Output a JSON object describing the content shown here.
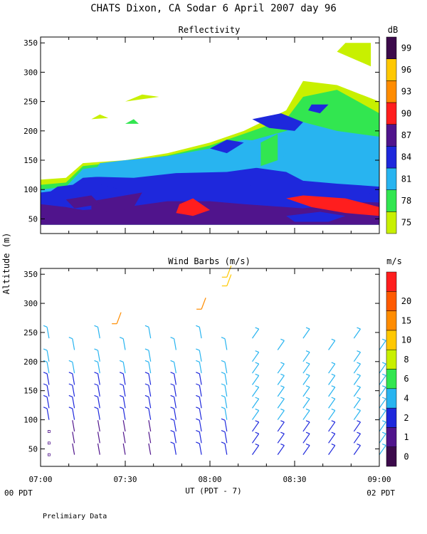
{
  "figure": {
    "title": "CHATS Dixon, CA  Sodar   6 April 2007  day  96",
    "shared_ylabel": "Altitude (m)",
    "xlabel": "UT  (PDT - 7)",
    "x_start_label": "00 PDT",
    "x_end_label": "02 PDT",
    "footnote": "Prelimiary Data"
  },
  "chart_data": [
    {
      "type": "heatmap",
      "title": "Reflectivity",
      "x_ticks": [
        "07:00",
        "07:30",
        "08:00",
        "08:30",
        "09:00"
      ],
      "x_range_hours": [
        7.0,
        9.0
      ],
      "y_range": [
        25,
        360
      ],
      "y_ticks": [
        50,
        100,
        150,
        200,
        250,
        300,
        350
      ],
      "colorbar": {
        "unit": "dB",
        "levels": [
          75,
          78,
          81,
          84,
          87,
          90,
          93,
          96,
          99
        ],
        "colors": [
          "#c8f000",
          "#32e650",
          "#28b4f0",
          "#1e28dc",
          "#50148c",
          "#ff1e1e",
          "#ff8c00",
          "#ffc800",
          "#3c0a4b"
        ]
      },
      "layers_db": [
        {
          "level": 75,
          "top": [
            [
              7.0,
              117
            ],
            [
              7.15,
              120
            ],
            [
              7.25,
              145
            ],
            [
              7.5,
              150
            ],
            [
              7.75,
              162
            ],
            [
              8.0,
              180
            ],
            [
              8.2,
              200
            ],
            [
              8.45,
              235
            ],
            [
              8.55,
              285
            ],
            [
              8.75,
              278
            ],
            [
              9.0,
              250
            ]
          ]
        },
        {
          "level": 78,
          "top": [
            [
              7.0,
              108
            ],
            [
              7.15,
              112
            ],
            [
              7.25,
              140
            ],
            [
              7.5,
              148
            ],
            [
              7.75,
              158
            ],
            [
              8.0,
              175
            ],
            [
              8.2,
              195
            ],
            [
              8.45,
              220
            ],
            [
              8.55,
              258
            ],
            [
              8.75,
              270
            ],
            [
              9.0,
              230
            ]
          ]
        },
        {
          "level": 81,
          "top": [
            [
              7.0,
              100
            ],
            [
              7.15,
              105
            ],
            [
              7.25,
              135
            ],
            [
              7.5,
              145
            ],
            [
              7.75,
              150
            ],
            [
              8.0,
              168
            ],
            [
              8.2,
              180
            ],
            [
              8.45,
              200
            ],
            [
              8.55,
              215
            ],
            [
              8.75,
              200
            ],
            [
              9.0,
              190
            ]
          ]
        },
        {
          "level": 84,
          "top": [
            [
              7.0,
              95
            ],
            [
              7.15,
              100
            ],
            [
              7.25,
              120
            ],
            [
              7.5,
              125
            ],
            [
              7.75,
              140
            ],
            [
              8.0,
              145
            ],
            [
              8.2,
              140
            ],
            [
              8.45,
              130
            ],
            [
              8.55,
              115
            ],
            [
              8.75,
              110
            ],
            [
              9.0,
              105
            ]
          ]
        },
        {
          "level": 87,
          "top": [
            [
              7.0,
              75
            ],
            [
              7.15,
              70
            ],
            [
              7.25,
              65
            ],
            [
              7.5,
              70
            ],
            [
              7.75,
              80
            ],
            [
              8.0,
              80
            ],
            [
              8.2,
              75
            ],
            [
              8.45,
              70
            ],
            [
              8.55,
              68
            ],
            [
              8.75,
              75
            ],
            [
              9.0,
              80
            ]
          ]
        }
      ]
    },
    {
      "type": "scatter",
      "title": "Wind Barbs (m/s)",
      "x_ticks": [
        "07:00",
        "07:30",
        "08:00",
        "08:30",
        "09:00"
      ],
      "x_range_hours": [
        7.0,
        9.0
      ],
      "y_range": [
        20,
        360
      ],
      "y_ticks": [
        50,
        100,
        150,
        200,
        250,
        300,
        350
      ],
      "colorbar": {
        "unit": "m/s",
        "levels": [
          0,
          1,
          2,
          4,
          6,
          8,
          10,
          15,
          20
        ],
        "colors": [
          "#3c0a4b",
          "#50148c",
          "#1e28dc",
          "#28b4f0",
          "#32e650",
          "#c8f000",
          "#ffc800",
          "#ff8c00",
          "#ff5a00",
          "#ff1e1e"
        ]
      },
      "columns_hours": [
        7.05,
        7.2,
        7.35,
        7.5,
        7.65,
        7.8,
        7.95,
        8.1,
        8.25,
        8.4,
        8.55,
        8.7,
        8.85,
        9.0
      ],
      "heights_m": [
        40,
        60,
        80,
        100,
        120,
        140,
        160,
        180,
        200,
        220,
        240
      ],
      "speed_field_m_s": {
        "low_levels": 1,
        "mid_levels": 3,
        "high_levels": 5,
        "jet_core": 20
      }
    }
  ]
}
